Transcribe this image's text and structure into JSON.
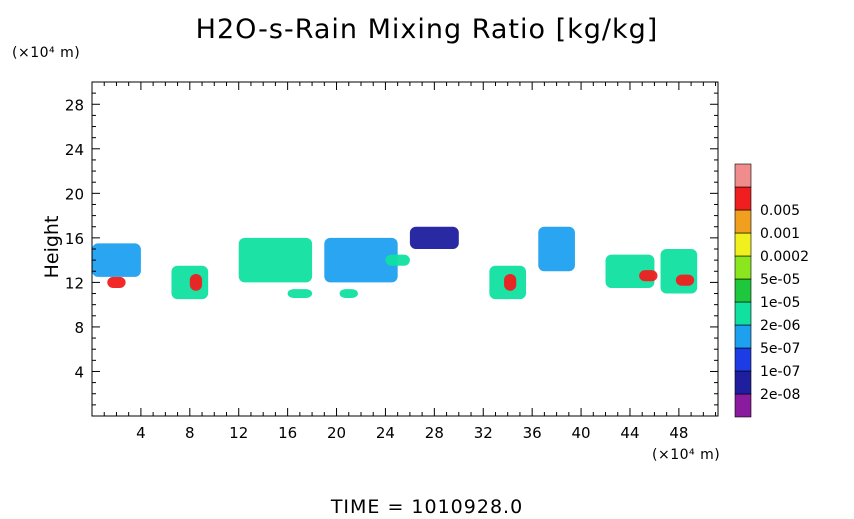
{
  "chart_data": {
    "type": "heatmap",
    "title": "H2O-s-Rain Mixing Ratio [kg/kg]",
    "xlabel": "",
    "ylabel": "Height",
    "x_unit_label": "(×10⁴ m)",
    "y_unit_label": "(×10⁴ m)",
    "xlim": [
      0,
      51.2
    ],
    "ylim": [
      0,
      30
    ],
    "x_ticks": [
      4,
      8,
      12,
      16,
      20,
      24,
      28,
      32,
      36,
      40,
      44,
      48
    ],
    "y_ticks": [
      4,
      8,
      12,
      16,
      20,
      24,
      28
    ],
    "colorbar": {
      "levels": [
        "2e-08",
        "1e-07",
        "5e-07",
        "2e-06",
        "1e-05",
        "5e-05",
        "0.0002",
        "0.001",
        "0.005"
      ],
      "colors": [
        "#8a1a9e",
        "#1e1e9e",
        "#1e3ce6",
        "#1ea0f0",
        "#10e0a0",
        "#1ec83c",
        "#8ce61e",
        "#f0f01e",
        "#f0a01e",
        "#f01e1e",
        "#f08c8c"
      ]
    },
    "cells": [
      {
        "x": 2,
        "y": 14,
        "w": 4,
        "h": 3,
        "level": 3
      },
      {
        "x": 8,
        "y": 12,
        "w": 3,
        "h": 3,
        "level": 4
      },
      {
        "x": 15,
        "y": 14,
        "w": 6,
        "h": 4,
        "level": 4
      },
      {
        "x": 22,
        "y": 14,
        "w": 6,
        "h": 4,
        "level": 3
      },
      {
        "x": 28,
        "y": 16,
        "w": 4,
        "h": 2,
        "level": 1
      },
      {
        "x": 34,
        "y": 12,
        "w": 3,
        "h": 3,
        "level": 4
      },
      {
        "x": 38,
        "y": 15,
        "w": 3,
        "h": 4,
        "level": 3
      },
      {
        "x": 44,
        "y": 13,
        "w": 4,
        "h": 3,
        "level": 4
      },
      {
        "x": 48,
        "y": 13,
        "w": 3,
        "h": 4,
        "level": 4
      },
      {
        "x": 2,
        "y": 12,
        "w": 1.5,
        "h": 1,
        "level": 9
      },
      {
        "x": 8.5,
        "y": 12,
        "w": 1,
        "h": 1.5,
        "level": 9
      },
      {
        "x": 34.2,
        "y": 12,
        "w": 1,
        "h": 1.5,
        "level": 9
      },
      {
        "x": 45.5,
        "y": 12.6,
        "w": 1.5,
        "h": 1,
        "level": 9
      },
      {
        "x": 48.5,
        "y": 12.2,
        "w": 1.5,
        "h": 1,
        "level": 9
      },
      {
        "x": 17,
        "y": 11,
        "w": 2,
        "h": 0.8,
        "level": 4
      },
      {
        "x": 21,
        "y": 11,
        "w": 1.5,
        "h": 0.8,
        "level": 4
      },
      {
        "x": 25,
        "y": 14,
        "w": 2,
        "h": 1,
        "level": 4
      }
    ]
  },
  "footer": "TIME = 1010928.0"
}
